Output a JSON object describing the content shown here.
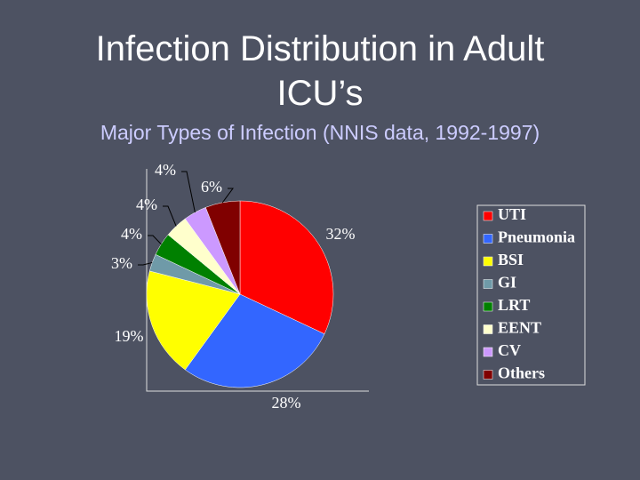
{
  "chart_data": {
    "type": "pie",
    "title": "Infection Distribution in Adult ICU’s",
    "subtitle": "Major Types of Infection (NNIS data, 1992-1997)",
    "categories": [
      "UTI",
      "Pneumonia",
      "BSI",
      "GI",
      "LRT",
      "EENT",
      "CV",
      "Others"
    ],
    "values": [
      32,
      28,
      19,
      3,
      4,
      4,
      4,
      6
    ],
    "value_labels": [
      "32%",
      "28%",
      "19%",
      "3%",
      "4%",
      "4%",
      "4%",
      "6%"
    ],
    "colors": [
      "#ff0000",
      "#3366ff",
      "#ffff00",
      "#6f9aa8",
      "#008000",
      "#ffffcc",
      "#cc99ff",
      "#800000"
    ]
  }
}
